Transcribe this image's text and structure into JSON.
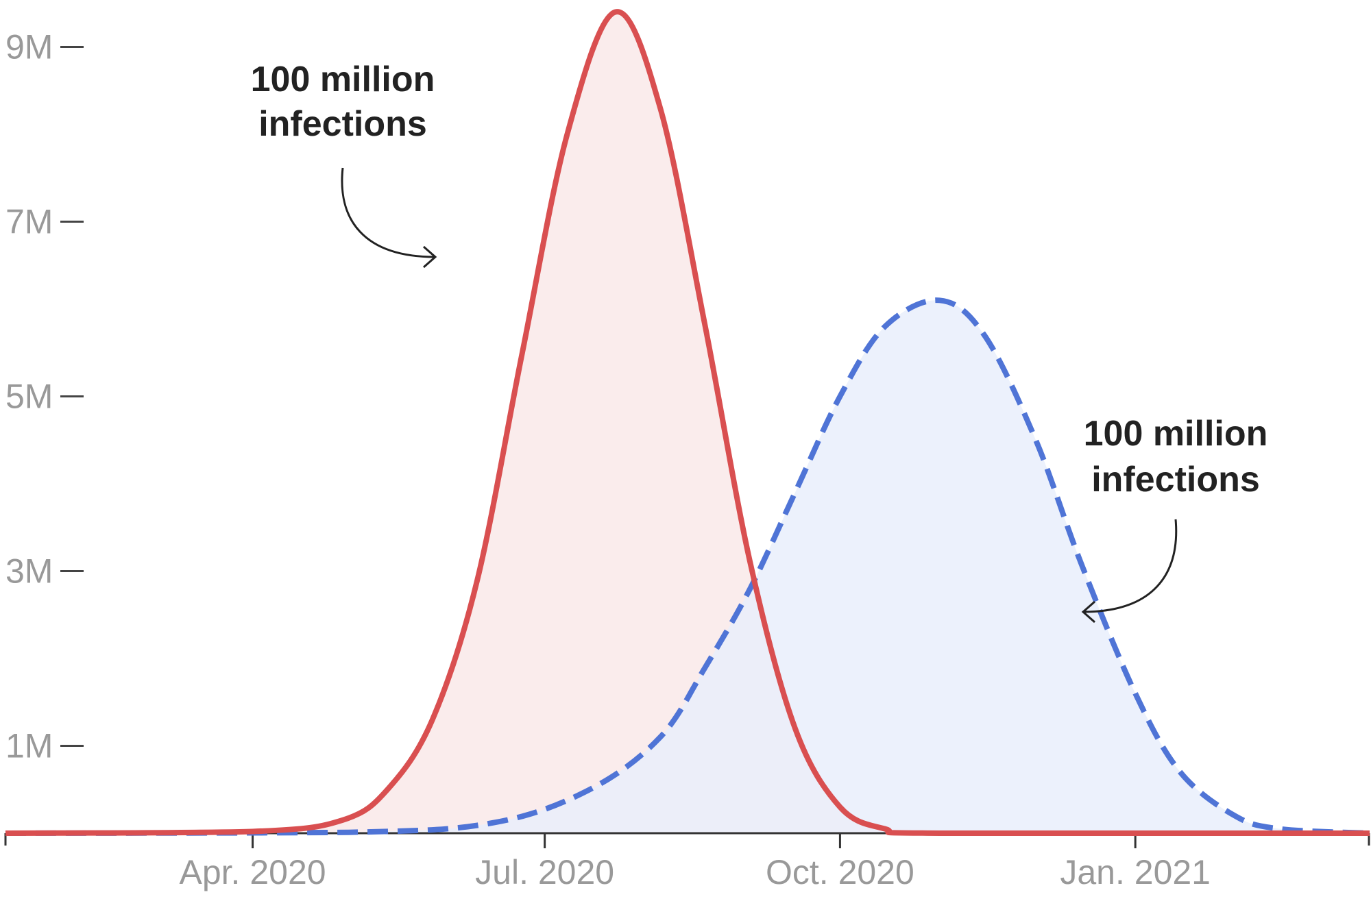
{
  "chart_data": {
    "type": "area",
    "title": "",
    "xlabel": "",
    "ylabel": "",
    "xlim": [
      "2020-01-15",
      "2021-03-15"
    ],
    "ylim": [
      0,
      9500000
    ],
    "y_ticks": [
      {
        "value": 1000000,
        "label": "1M"
      },
      {
        "value": 3000000,
        "label": "3M"
      },
      {
        "value": 5000000,
        "label": "5M"
      },
      {
        "value": 7000000,
        "label": "7M"
      },
      {
        "value": 9000000,
        "label": "9M"
      }
    ],
    "x_ticks": [
      {
        "value": "2020-04-01",
        "label": "Apr. 2020"
      },
      {
        "value": "2020-07-01",
        "label": "Jul. 2020"
      },
      {
        "value": "2020-10-01",
        "label": "Oct. 2020"
      },
      {
        "value": "2021-01-01",
        "label": "Jan. 2021"
      }
    ],
    "series": [
      {
        "style": "solid",
        "color": "#d94f50",
        "fill": "#f9e9e9",
        "peak_date": "2020-07-23",
        "peak_value": 9400000,
        "points": [
          [
            "2020-01-15",
            0
          ],
          [
            "2020-04-01",
            20000
          ],
          [
            "2020-04-29",
            150000
          ],
          [
            "2020-05-13",
            500000
          ],
          [
            "2020-05-27",
            1300000
          ],
          [
            "2020-06-10",
            2900000
          ],
          [
            "2020-06-24",
            5500000
          ],
          [
            "2020-07-08",
            8000000
          ],
          [
            "2020-07-23",
            9400000
          ],
          [
            "2020-08-06",
            8300000
          ],
          [
            "2020-08-20",
            5800000
          ],
          [
            "2020-09-03",
            3100000
          ],
          [
            "2020-09-17",
            1200000
          ],
          [
            "2020-10-01",
            300000
          ],
          [
            "2020-10-15",
            50000
          ],
          [
            "2020-11-01",
            0
          ],
          [
            "2021-03-15",
            0
          ]
        ]
      },
      {
        "style": "dashed",
        "color": "#4f74d6",
        "fill": "#e9effb",
        "peak_date": "2020-11-01",
        "peak_value": 6100000,
        "points": [
          [
            "2020-01-15",
            0
          ],
          [
            "2020-05-01",
            10000
          ],
          [
            "2020-06-15",
            120000
          ],
          [
            "2020-07-15",
            500000
          ],
          [
            "2020-08-06",
            1100000
          ],
          [
            "2020-08-20",
            1900000
          ],
          [
            "2020-09-03",
            2800000
          ],
          [
            "2020-09-17",
            3900000
          ],
          [
            "2020-10-01",
            5000000
          ],
          [
            "2020-10-15",
            5800000
          ],
          [
            "2020-11-01",
            6100000
          ],
          [
            "2020-11-15",
            5700000
          ],
          [
            "2020-12-01",
            4500000
          ],
          [
            "2020-12-15",
            3100000
          ],
          [
            "2021-01-01",
            1600000
          ],
          [
            "2021-01-15",
            700000
          ],
          [
            "2021-02-01",
            200000
          ],
          [
            "2021-02-15",
            50000
          ],
          [
            "2021-03-15",
            0
          ]
        ]
      }
    ],
    "annotations": [
      {
        "lines": [
          "100 million",
          "infections"
        ],
        "series_index": 0
      },
      {
        "lines": [
          "100 million",
          "infections"
        ],
        "series_index": 1
      }
    ]
  }
}
